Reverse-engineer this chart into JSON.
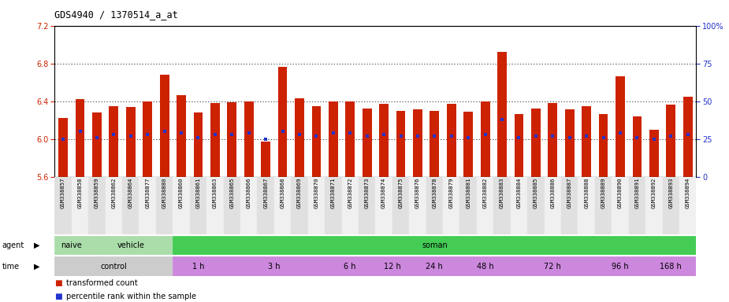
{
  "title": "GDS4940 / 1370514_a_at",
  "ylim_left": [
    5.6,
    7.2
  ],
  "ylim_right": [
    0,
    100
  ],
  "yticks_left": [
    5.6,
    6.0,
    6.4,
    6.8,
    7.2
  ],
  "yticks_right": [
    0,
    25,
    50,
    75,
    100
  ],
  "samples": [
    "GSM338857",
    "GSM338858",
    "GSM338859",
    "GSM338862",
    "GSM338864",
    "GSM338877",
    "GSM338880",
    "GSM338860",
    "GSM338861",
    "GSM338863",
    "GSM338865",
    "GSM338866",
    "GSM338867",
    "GSM338868",
    "GSM338869",
    "GSM338870",
    "GSM338871",
    "GSM338872",
    "GSM338873",
    "GSM338874",
    "GSM338875",
    "GSM338876",
    "GSM338878",
    "GSM338879",
    "GSM338881",
    "GSM338882",
    "GSM338883",
    "GSM338884",
    "GSM338885",
    "GSM338886",
    "GSM338887",
    "GSM338888",
    "GSM338889",
    "GSM338890",
    "GSM338891",
    "GSM338892",
    "GSM338893",
    "GSM338894"
  ],
  "bar_tops": [
    6.22,
    6.42,
    6.28,
    6.35,
    6.34,
    6.4,
    6.68,
    6.46,
    6.28,
    6.38,
    6.39,
    6.4,
    5.97,
    6.76,
    6.43,
    6.35,
    6.4,
    6.4,
    6.32,
    6.37,
    6.3,
    6.31,
    6.3,
    6.37,
    6.29,
    6.4,
    6.92,
    6.26,
    6.32,
    6.38,
    6.31,
    6.35,
    6.26,
    6.66,
    6.24,
    6.1,
    6.36,
    6.45
  ],
  "percentiles": [
    25,
    30,
    26,
    28,
    27,
    28,
    30,
    29,
    26,
    28,
    28,
    29,
    25,
    30,
    28,
    27,
    29,
    29,
    27,
    28,
    27,
    27,
    27,
    27,
    26,
    28,
    38,
    26,
    27,
    27,
    26,
    27,
    26,
    29,
    26,
    25,
    27,
    28
  ],
  "bar_bottom": 5.6,
  "bar_color": "#cc2200",
  "percentile_color": "#2233cc",
  "bg_color_chart": "#ffffff",
  "legend_transformed": "transformed count",
  "legend_percentile": "percentile rank within the sample",
  "agent_groups": [
    {
      "label": "naive",
      "start": 0,
      "end": 2,
      "color": "#aaddaa"
    },
    {
      "label": "vehicle",
      "start": 2,
      "end": 7,
      "color": "#aaddaa"
    },
    {
      "label": "soman",
      "start": 7,
      "end": 38,
      "color": "#44cc55"
    }
  ],
  "time_groups": [
    {
      "label": "control",
      "start": 0,
      "end": 7,
      "color": "#cccccc"
    },
    {
      "label": "1 h",
      "start": 7,
      "end": 10,
      "color": "#cc88dd"
    },
    {
      "label": "3 h",
      "start": 10,
      "end": 16,
      "color": "#cc88dd"
    },
    {
      "label": "6 h",
      "start": 16,
      "end": 19,
      "color": "#cc88dd"
    },
    {
      "label": "12 h",
      "start": 19,
      "end": 21,
      "color": "#cc88dd"
    },
    {
      "label": "24 h",
      "start": 21,
      "end": 24,
      "color": "#cc88dd"
    },
    {
      "label": "48 h",
      "start": 24,
      "end": 27,
      "color": "#cc88dd"
    },
    {
      "label": "72 h",
      "start": 27,
      "end": 32,
      "color": "#cc88dd"
    },
    {
      "label": "96 h",
      "start": 32,
      "end": 35,
      "color": "#cc88dd"
    },
    {
      "label": "168 h",
      "start": 35,
      "end": 38,
      "color": "#cc88dd"
    }
  ]
}
